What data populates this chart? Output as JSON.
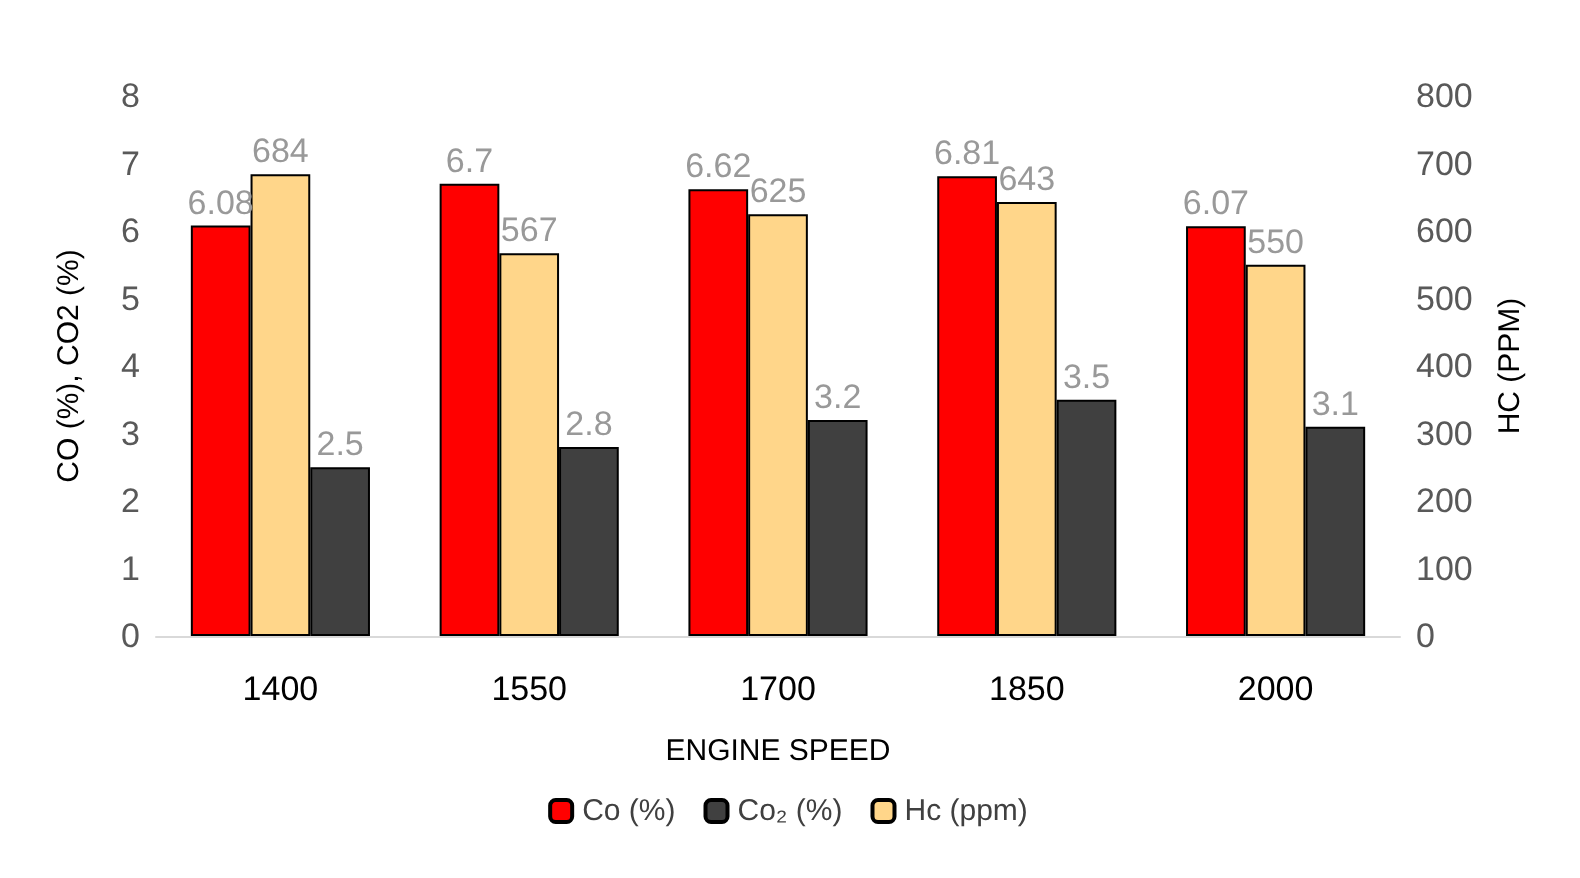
{
  "chart_data": {
    "type": "bar",
    "xlabel": "ENGINE SPEED",
    "ylabel": "CO (%), CO2 (%)",
    "y2label": "HC (PPM)",
    "categories": [
      "1400",
      "1550",
      "1700",
      "1850",
      "2000"
    ],
    "series": [
      {
        "name": "Co (%)",
        "color": "#ff0000",
        "values": [
          6.08,
          6.7,
          6.62,
          6.81,
          6.07
        ]
      },
      {
        "name": "Hc (ppm)",
        "color": "#ffd68a",
        "values": [
          684,
          567,
          625,
          643,
          550
        ],
        "axis": "y2"
      },
      {
        "name": "Co₂ (%)",
        "color": "#404040",
        "values": [
          2.5,
          2.8,
          3.2,
          3.5,
          3.1
        ]
      }
    ],
    "ylim": [
      0,
      8
    ],
    "yticks": [
      0,
      1,
      2,
      3,
      4,
      5,
      6,
      7,
      8
    ],
    "y2lim": [
      0,
      800
    ],
    "y2ticks": [
      0,
      100,
      200,
      300,
      400,
      500,
      600,
      700,
      800
    ],
    "data_labels": true,
    "grid": false,
    "legend": "bottom"
  }
}
